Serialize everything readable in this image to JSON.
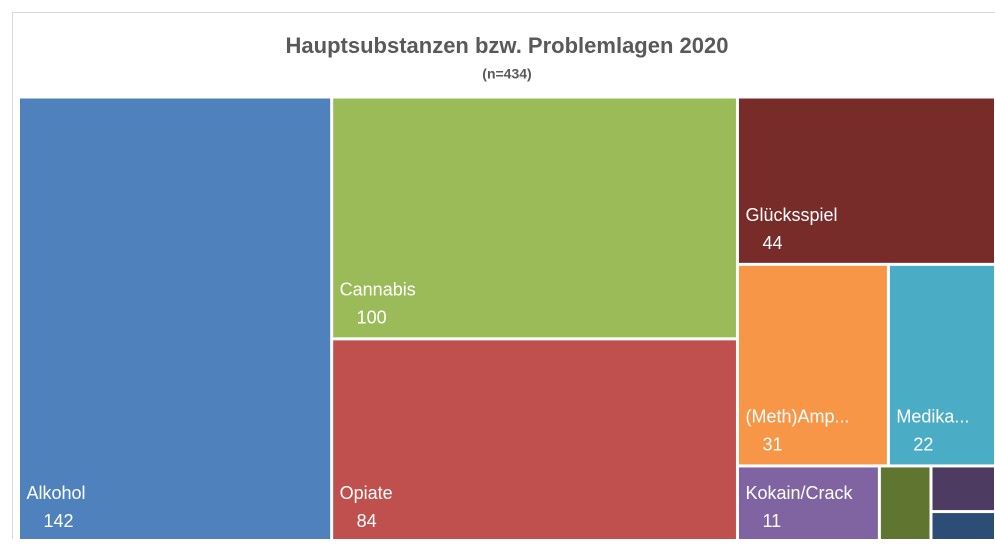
{
  "chart_data": {
    "type": "treemap",
    "title": "Hauptsubstanzen bzw. Problemlagen 2020",
    "subtitle": "(n=434)",
    "categories": [
      "Alkohol",
      "Cannabis",
      "Opiate",
      "Glücksspiel",
      "(Meth)Amp...",
      "Medika...",
      "Kokain/Crack",
      null,
      null,
      null
    ],
    "values": [
      142,
      100,
      84,
      44,
      31,
      22,
      11,
      4,
      3,
      2
    ],
    "value_labels": [
      "142",
      "100",
      "84",
      "44",
      "31",
      "22",
      "11",
      null,
      null,
      null
    ],
    "colors": [
      "#4f81bd",
      "#9bbb59",
      "#c0504d",
      "#772c2a",
      "#f79646",
      "#4bacc6",
      "#8064a2",
      "#5f7530",
      "#4d3b62",
      "#2c4d75"
    ]
  }
}
